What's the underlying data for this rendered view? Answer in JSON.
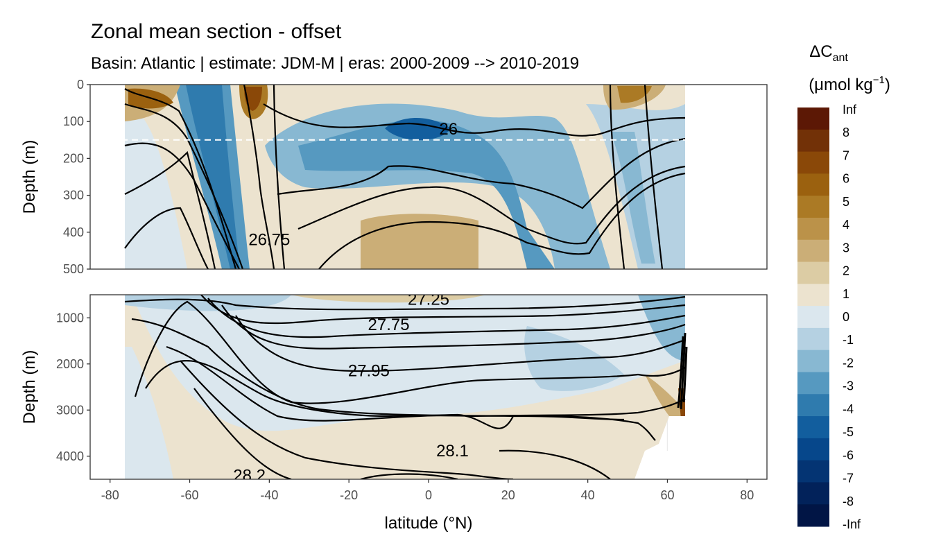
{
  "chart_data": {
    "type": "heatmap",
    "title": "Zonal mean section - offset",
    "subtitle": "Basin: Atlantic | estimate: JDM-M | eras: 2000-2009 --> 2010-2019",
    "xlabel": "latitude (°N)",
    "ylabel_top": "Depth (m)",
    "ylabel_bottom": "Depth (m)",
    "xlim": [
      -85,
      85
    ],
    "x_ticks": [
      "-80",
      "-60",
      "-40",
      "-20",
      "0",
      "20",
      "40",
      "60",
      "80"
    ],
    "x_tick_values": [
      -80,
      -60,
      -40,
      -20,
      0,
      20,
      40,
      60,
      80
    ],
    "top_panel": {
      "ylim": [
        0,
        500
      ],
      "y_ticks": [
        "0",
        "100",
        "200",
        "300",
        "400",
        "500"
      ],
      "y_tick_values": [
        0,
        100,
        200,
        300,
        400,
        500
      ],
      "reference_depth": 150,
      "contour_labels": [
        {
          "text": "26",
          "lat": 5,
          "depth": 120
        },
        {
          "text": "26.75",
          "lat": -40,
          "depth": 420
        }
      ]
    },
    "bottom_panel": {
      "ylim": [
        500,
        4500
      ],
      "y_ticks": [
        "1000",
        "2000",
        "3000",
        "4000"
      ],
      "y_tick_values": [
        1000,
        2000,
        3000,
        4000
      ],
      "contour_labels": [
        {
          "text": "27.25",
          "lat": 0,
          "depth": 600
        },
        {
          "text": "27.75",
          "lat": -10,
          "depth": 1150
        },
        {
          "text": "27.95",
          "lat": -15,
          "depth": 2150
        },
        {
          "text": "28.1",
          "lat": 6,
          "depth": 3880
        },
        {
          "text": "28.2",
          "lat": -45,
          "depth": 4420
        }
      ]
    },
    "colorbar": {
      "title_main": "ΔC",
      "title_sub": "ant",
      "unit_main": "(μmol kg",
      "unit_sup": "−1",
      "unit_end": ")",
      "labels": [
        "Inf",
        "8",
        "7",
        "6",
        "5",
        "4",
        "3",
        "2",
        "1",
        "0",
        "-1",
        "-2",
        "-3",
        "-4",
        "-5",
        "-6",
        "-7",
        "-8",
        "-Inf"
      ],
      "colors": [
        "#5c1805",
        "#723107",
        "#8a4808",
        "#9b610f",
        "#ab7a25",
        "#bb9249",
        "#cbae77",
        "#dccca4",
        "#ece3cf",
        "#dbe7ee",
        "#b5d1e2",
        "#88b8d2",
        "#5699c0",
        "#2f7bae",
        "#125e9e",
        "#06478b",
        "#043473",
        "#02225a",
        "#011545"
      ]
    }
  }
}
